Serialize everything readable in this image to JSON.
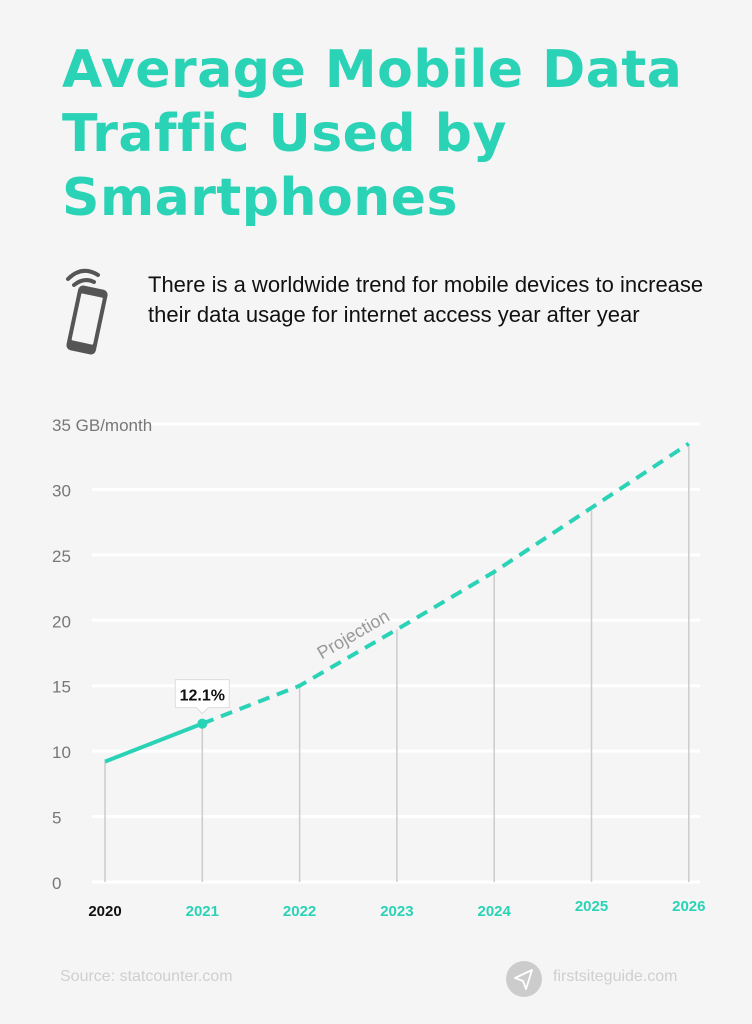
{
  "header": {
    "title": "Average Mobile Data Traffic Used by Smartphones",
    "subtitle": "There is a worldwide trend for mobile devices to increase their data usage for internet access year after year",
    "icon": "smartphone-wifi-icon"
  },
  "chart_data": {
    "type": "line",
    "title": "",
    "ylabel": "GB/month",
    "ylim": [
      0,
      35
    ],
    "yticks": [
      0,
      5,
      10,
      15,
      20,
      25,
      30,
      35
    ],
    "categories": [
      "2020",
      "2021",
      "2022",
      "2023",
      "2024",
      "2025",
      "2026"
    ],
    "values": [
      9.2,
      12.1,
      15.0,
      19.3,
      23.7,
      28.6,
      33.5
    ],
    "actual_through": "2021",
    "projection_label": "Projection",
    "annotation": {
      "category": "2021",
      "text": "12.1%"
    },
    "grid": true,
    "colors": {
      "line": "#2ad2b6",
      "grid": "#ffffff",
      "drop": "#cccccc",
      "first_tick": "#111111",
      "tick": "#2ad2b6",
      "axis_text": "#777777"
    }
  },
  "footer": {
    "source": "Source: statcounter.com",
    "brand": "firstsiteguide.com",
    "brand_icon": "paper-plane-icon"
  }
}
